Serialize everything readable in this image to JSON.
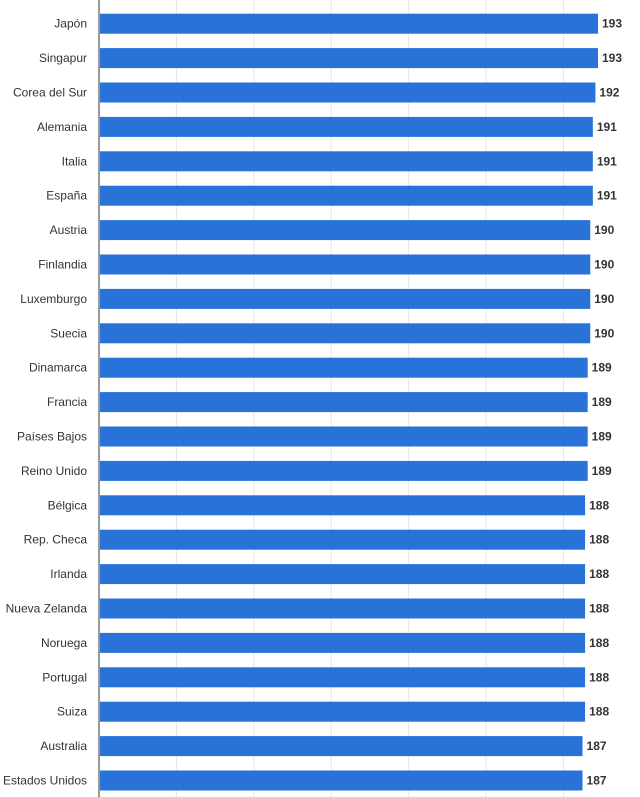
{
  "chart_data": {
    "type": "bar",
    "orientation": "horizontal",
    "categories": [
      "Japón",
      "Singapur",
      "Corea del Sur",
      "Alemania",
      "Italia",
      "España",
      "Austria",
      "Finlandia",
      "Luxemburgo",
      "Suecia",
      "Dinamarca",
      "Francia",
      "Países Bajos",
      "Reino Unido",
      "Bélgica",
      "Rep. Checa",
      "Irlanda",
      "Nueva Zelanda",
      "Noruega",
      "Portugal",
      "Suiza",
      "Australia",
      "Estados Unidos"
    ],
    "values": [
      193,
      193,
      192,
      191,
      191,
      191,
      190,
      190,
      190,
      190,
      189,
      189,
      189,
      189,
      188,
      188,
      188,
      188,
      188,
      188,
      188,
      187,
      187
    ],
    "xlim": [
      0,
      210
    ],
    "bar_color": "#2872d8",
    "grid": true,
    "grid_color": "#e6e6e6",
    "axis_color": "#333333",
    "value_labels": true
  }
}
